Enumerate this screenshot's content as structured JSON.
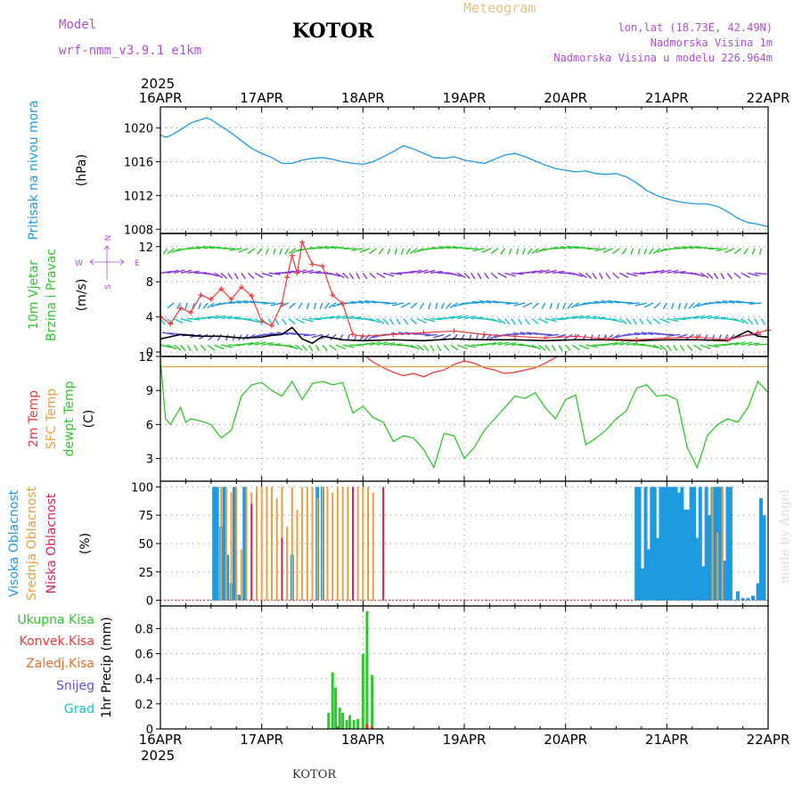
{
  "header": {
    "model_label": "Model",
    "model_name": "wrf-nmm_v3.9.1 e1km",
    "location": "KOTOR",
    "meteogram": "Meteogram",
    "lonlat": "lon,lat (18.73E, 42.49N)",
    "elevation": "Nadmorska Visina 1m",
    "model_elevation": "Nadmorska Visina u modelu 226.964m",
    "footer_location": "KOTOR",
    "watermark": "made by Angel"
  },
  "colors": {
    "pressure": "#1e9be0",
    "temp2m": "#ee3b3b",
    "sfc_temp": "#e8a040",
    "dewpt": "#2ec82e",
    "cloud_high": "#1e9be0",
    "cloud_mid": "#e8a040",
    "cloud_low": "#dd2255",
    "precip_total": "#2ec82e",
    "precip_conv": "#ee3b3b",
    "purple_text": "#b050d8",
    "grid": "#888888"
  },
  "chart_data": [
    {
      "panel": "pressure",
      "type": "line",
      "ylabel_left": "Pritisak na nivou mora",
      "ylabel_unit": "(hPa)",
      "ylim": [
        1007.5,
        1022.5
      ],
      "yticks": [
        1008,
        1012,
        1016,
        1020
      ],
      "x_days": [
        0,
        0.05,
        0.1,
        0.2,
        0.3,
        0.4,
        0.45,
        0.5,
        0.6,
        0.7,
        0.8,
        0.9,
        1.0,
        1.1,
        1.2,
        1.3,
        1.4,
        1.5,
        1.6,
        1.7,
        1.8,
        1.9,
        2.0,
        2.1,
        2.2,
        2.3,
        2.4,
        2.5,
        2.6,
        2.7,
        2.8,
        2.9,
        3.0,
        3.1,
        3.2,
        3.3,
        3.4,
        3.5,
        3.6,
        3.7,
        3.8,
        3.9,
        4.0,
        4.1,
        4.2,
        4.3,
        4.4,
        4.5,
        4.6,
        4.7,
        4.8,
        4.9,
        5.0,
        5.1,
        5.2,
        5.3,
        5.4,
        5.5,
        5.6,
        5.7,
        5.8,
        5.9,
        6.0
      ],
      "values": [
        1019.2,
        1018.9,
        1019.1,
        1019.8,
        1020.6,
        1021.0,
        1021.2,
        1021.0,
        1020.2,
        1019.4,
        1018.5,
        1017.6,
        1017.0,
        1016.5,
        1015.8,
        1015.8,
        1016.2,
        1016.4,
        1016.5,
        1016.3,
        1016.0,
        1015.8,
        1015.7,
        1016.0,
        1016.6,
        1017.2,
        1017.9,
        1017.5,
        1017.0,
        1016.5,
        1016.4,
        1016.6,
        1016.2,
        1016.0,
        1015.8,
        1016.3,
        1016.8,
        1017.0,
        1016.6,
        1016.1,
        1015.6,
        1015.2,
        1015.0,
        1014.8,
        1014.9,
        1014.6,
        1014.5,
        1014.6,
        1014.2,
        1013.5,
        1012.6,
        1012.0,
        1011.6,
        1011.3,
        1011.1,
        1011.0,
        1011.0,
        1010.7,
        1010.1,
        1009.3,
        1008.8,
        1008.6,
        1008.3
      ]
    },
    {
      "panel": "wind",
      "type": "line",
      "ylabel_left": "10m Vjetar",
      "ylabel_left2": "Brzina i Pravac",
      "ylabel_unit": "(m/s)",
      "compass": {
        "w": "W",
        "e": "E",
        "n": "N",
        "s": "S"
      },
      "ylim": [
        -0.5,
        13.5
      ],
      "yticks": [
        0,
        4,
        8,
        12
      ],
      "series": [
        {
          "color": "#000000",
          "x_days": [
            0,
            0.2,
            0.4,
            0.6,
            0.8,
            1.0,
            1.1,
            1.2,
            1.3,
            1.4,
            1.5,
            1.6,
            1.7,
            1.8,
            2.0,
            2.3,
            2.6,
            2.9,
            3.2,
            3.5,
            3.8,
            4.1,
            4.4,
            4.7,
            5.0,
            5.3,
            5.6,
            5.8,
            5.9,
            6.0
          ],
          "values": [
            1.5,
            2.0,
            1.8,
            1.8,
            1.6,
            1.7,
            1.9,
            2.0,
            2.8,
            1.5,
            1.0,
            1.8,
            1.6,
            1.4,
            1.3,
            1.4,
            1.3,
            1.5,
            1.4,
            1.4,
            1.3,
            1.4,
            1.4,
            1.3,
            1.4,
            1.4,
            1.3,
            2.4,
            1.8,
            1.7
          ]
        },
        {
          "color": "#ee3b3b",
          "x_days": [
            0,
            0.1,
            0.2,
            0.3,
            0.4,
            0.5,
            0.6,
            0.7,
            0.8,
            0.9,
            1.0,
            1.1,
            1.2,
            1.25,
            1.3,
            1.35,
            1.4,
            1.5,
            1.6,
            1.7,
            1.8,
            1.9,
            2.0,
            2.3,
            2.6,
            2.9,
            3.2,
            3.5,
            3.8,
            4.1,
            4.4,
            4.7,
            5.0,
            5.3,
            5.6,
            5.9,
            6.0
          ],
          "values": [
            4.0,
            3.2,
            5.0,
            4.5,
            6.5,
            6.0,
            7.2,
            6.0,
            7.4,
            6.4,
            3.5,
            3.0,
            5.5,
            8.5,
            11.0,
            9.0,
            12.5,
            10.0,
            9.8,
            6.5,
            5.5,
            2.0,
            1.8,
            2.0,
            2.2,
            2.4,
            2.0,
            1.8,
            1.6,
            1.8,
            1.5,
            1.4,
            1.6,
            1.7,
            1.4,
            2.2,
            2.5
          ]
        }
      ],
      "barb_rows": [
        {
          "level": 0.8,
          "color": "#2ec82e"
        },
        {
          "level": 2.0,
          "color": "#5b52e0"
        },
        {
          "level": 3.8,
          "color": "#17c5c0"
        },
        {
          "level": 5.6,
          "color": "#1e9be0"
        },
        {
          "level": 9.0,
          "color": "#8833dd"
        },
        {
          "level": 11.8,
          "color": "#2ec82e"
        }
      ]
    },
    {
      "panel": "temperature",
      "type": "line",
      "ylabel_left": "2m Temp",
      "ylabel_left2": "SFC Temp",
      "ylabel_left3": "dewpt Temp",
      "ylabel_unit": "(C)",
      "ylim": [
        1.0,
        12.0
      ],
      "yticks": [
        3,
        6,
        9,
        12
      ],
      "series": [
        {
          "name": "2m Temp",
          "color": "#ee3b3b",
          "x_days": [
            2.0,
            2.1,
            2.2,
            2.3,
            2.4,
            2.5,
            2.6,
            2.7,
            2.8,
            2.9,
            3.0,
            3.1,
            3.2,
            3.3,
            3.4,
            3.5,
            3.6,
            3.7,
            3.8,
            3.9,
            4.0
          ],
          "values": [
            12.2,
            11.5,
            11.0,
            10.6,
            10.3,
            10.5,
            10.2,
            10.6,
            10.8,
            11.3,
            11.6,
            11.4,
            11.0,
            10.8,
            10.5,
            10.6,
            10.8,
            11.0,
            11.4,
            11.9,
            12.3
          ]
        },
        {
          "name": "SFC Temp",
          "color": "#e8a040",
          "x_days": [
            0,
            6.0
          ],
          "values": [
            11.1,
            11.1
          ]
        },
        {
          "name": "dewpt Temp",
          "color": "#2ec82e",
          "x_days": [
            0,
            0.05,
            0.1,
            0.15,
            0.2,
            0.25,
            0.3,
            0.35,
            0.4,
            0.5,
            0.6,
            0.7,
            0.8,
            0.9,
            1.0,
            1.1,
            1.2,
            1.3,
            1.4,
            1.5,
            1.6,
            1.7,
            1.8,
            1.9,
            2.0,
            2.1,
            2.2,
            2.3,
            2.4,
            2.5,
            2.6,
            2.7,
            2.8,
            2.9,
            3.0,
            3.1,
            3.2,
            3.3,
            3.4,
            3.5,
            3.6,
            3.7,
            3.8,
            3.9,
            4.0,
            4.1,
            4.2,
            4.3,
            4.4,
            4.5,
            4.6,
            4.7,
            4.8,
            4.9,
            5.0,
            5.1,
            5.2,
            5.3,
            5.4,
            5.5,
            5.6,
            5.7,
            5.8,
            5.9,
            6.0
          ],
          "values": [
            11.8,
            6.5,
            6.0,
            6.8,
            7.5,
            6.2,
            6.5,
            6.4,
            6.3,
            6.0,
            4.8,
            5.5,
            8.5,
            9.5,
            9.7,
            9.0,
            8.5,
            9.8,
            8.2,
            9.6,
            9.8,
            9.5,
            9.7,
            7.0,
            7.6,
            6.6,
            6.2,
            4.5,
            5.0,
            4.8,
            3.8,
            2.2,
            5.2,
            5.0,
            3.0,
            4.0,
            5.5,
            6.5,
            7.5,
            8.5,
            8.3,
            8.8,
            7.5,
            6.5,
            8.2,
            8.6,
            4.2,
            4.8,
            5.5,
            6.5,
            7.2,
            9.2,
            9.5,
            8.5,
            8.6,
            8.2,
            4.0,
            2.2,
            5.0,
            6.0,
            6.5,
            6.2,
            7.5,
            9.8,
            8.8
          ]
        }
      ]
    },
    {
      "panel": "clouds",
      "type": "bar",
      "ylabel_left": "Visoka Oblacnost",
      "ylabel_left2": "Srednja Oblacnost",
      "ylabel_left3": "Niska Oblacnost",
      "ylabel_unit": "(%)",
      "ylim": [
        -5,
        105
      ],
      "yticks": [
        0,
        25,
        50,
        75,
        100
      ],
      "series": [
        {
          "name": "Visoka Oblacnost",
          "color": "#1e9be0",
          "x_days": [
            0.53,
            0.56,
            0.6,
            0.63,
            0.66,
            0.7,
            0.73,
            0.78,
            0.83,
            1.3,
            1.55,
            1.6,
            4.7,
            4.73,
            4.76,
            4.79,
            4.82,
            4.85,
            4.88,
            4.91,
            4.94,
            4.97,
            5.0,
            5.03,
            5.06,
            5.09,
            5.12,
            5.15,
            5.18,
            5.21,
            5.24,
            5.27,
            5.3,
            5.33,
            5.36,
            5.39,
            5.42,
            5.45,
            5.48,
            5.51,
            5.54,
            5.57,
            5.6,
            5.63,
            5.7,
            5.75,
            5.8,
            5.85,
            5.9,
            5.93,
            5.96
          ],
          "values": [
            100,
            100,
            65,
            100,
            40,
            15,
            100,
            5,
            100,
            40,
            100,
            100,
            100,
            100,
            28,
            100,
            45,
            100,
            100,
            55,
            100,
            100,
            100,
            100,
            100,
            100,
            95,
            100,
            80,
            80,
            100,
            100,
            55,
            100,
            30,
            100,
            75,
            100,
            100,
            100,
            100,
            35,
            100,
            100,
            8,
            2,
            2,
            4,
            15,
            90,
            75
          ]
        },
        {
          "name": "Srednja Oblacnost",
          "color": "#e8a040",
          "x_days": [
            0.6,
            0.65,
            0.7,
            0.75,
            0.8,
            0.85,
            0.9,
            0.95,
            1.0,
            1.05,
            1.1,
            1.15,
            1.2,
            1.25,
            1.3,
            1.35,
            1.4,
            1.45,
            1.5,
            1.55,
            1.6,
            1.65,
            1.7,
            1.75,
            1.8,
            1.85,
            1.9,
            1.95,
            2.0,
            2.05,
            2.1,
            5.45,
            5.5,
            5.55
          ],
          "values": [
            100,
            100,
            95,
            100,
            45,
            100,
            95,
            100,
            100,
            100,
            100,
            90,
            100,
            65,
            100,
            80,
            100,
            100,
            100,
            90,
            100,
            100,
            95,
            100,
            100,
            100,
            100,
            100,
            100,
            100,
            95,
            100,
            60,
            100
          ]
        },
        {
          "name": "Niska Oblacnost",
          "color": "#dd2255",
          "x_days": [
            0.9,
            1.2,
            1.9,
            2.2
          ],
          "values": [
            85,
            55,
            100,
            100
          ]
        }
      ]
    },
    {
      "panel": "precip",
      "type": "bar",
      "ylabel_left": "Ukupna Kisa",
      "ylabel_left2": "Konvek.Kisa",
      "ylabel_left3": "Zaledj.Kisa",
      "ylabel_left4": "Snijeg",
      "ylabel_left5": "Grad",
      "ylabel_unit": "1hr Precip (mm)",
      "ylim": [
        0,
        0.98
      ],
      "yticks": [
        0,
        0.2,
        0.4,
        0.6,
        0.8
      ],
      "series": [
        {
          "name": "Ukupna Kisa",
          "color": "#2ec82e",
          "x_days": [
            1.66,
            1.7,
            1.73,
            1.77,
            1.8,
            1.84,
            1.87,
            1.91,
            1.95,
            2.0,
            2.04,
            2.09
          ],
          "values": [
            0.13,
            0.45,
            0.33,
            0.17,
            0.13,
            0.07,
            0.11,
            0.07,
            0.08,
            0.6,
            0.94,
            0.43
          ]
        },
        {
          "name": "Konvek.Kisa",
          "color": "#ee3b3b",
          "x_days": [
            2.02,
            2.07
          ],
          "values": [
            0.04,
            0.02
          ]
        }
      ]
    }
  ],
  "xaxis": {
    "year": "2025",
    "labels": [
      "16APR",
      "17APR",
      "18APR",
      "19APR",
      "20APR",
      "21APR",
      "22APR"
    ]
  }
}
